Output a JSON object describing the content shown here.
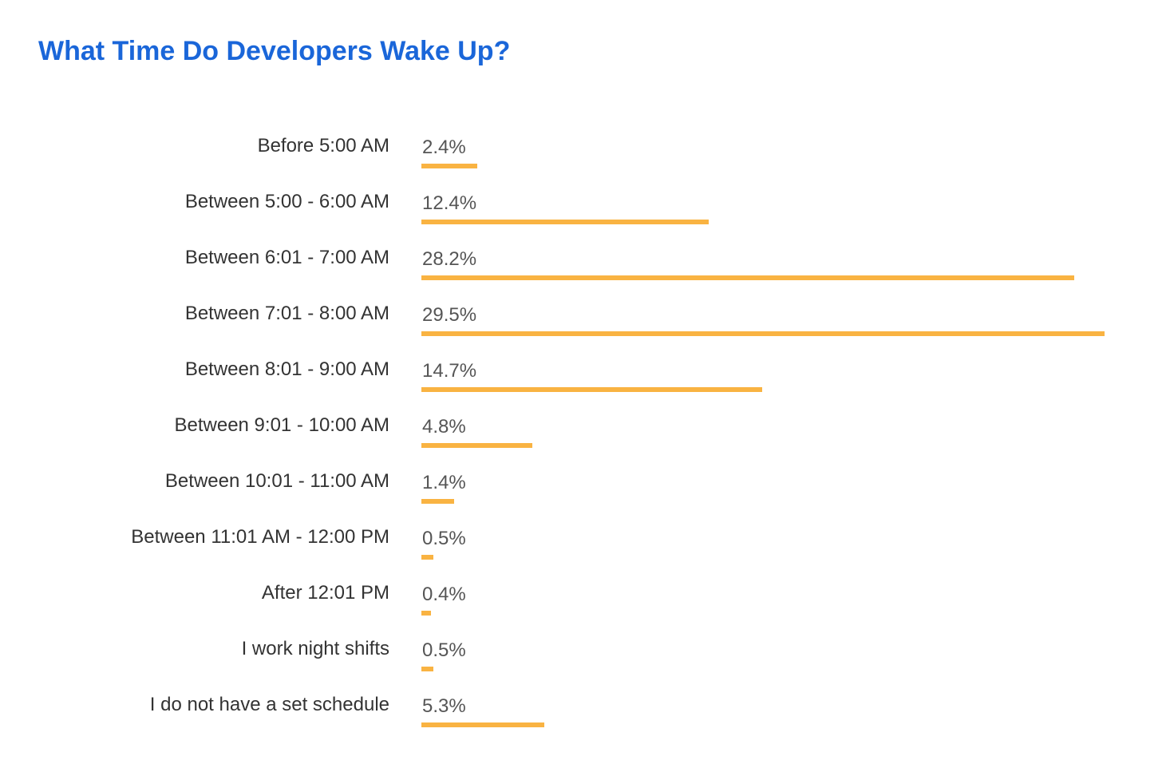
{
  "chart_data": {
    "type": "bar",
    "orientation": "horizontal",
    "title": "What Time Do Developers Wake Up?",
    "categories": [
      "Before 5:00 AM",
      "Between 5:00 - 6:00 AM",
      "Between 6:01 - 7:00 AM",
      "Between 7:01 - 8:00 AM",
      "Between 8:01 - 9:00 AM",
      "Between 9:01 - 10:00 AM",
      "Between 10:01 - 11:00 AM",
      "Between 11:01 AM - 12:00 PM",
      "After 12:01 PM",
      "I work night shifts",
      "I do not have a set schedule"
    ],
    "values": [
      2.4,
      12.4,
      28.2,
      29.5,
      14.7,
      4.8,
      1.4,
      0.5,
      0.4,
      0.5,
      5.3
    ],
    "value_labels": [
      "2.4%",
      "12.4%",
      "28.2%",
      "29.5%",
      "14.7%",
      "4.8%",
      "1.4%",
      "0.5%",
      "0.4%",
      "0.5%",
      "5.3%"
    ],
    "unit": "%",
    "grid": false,
    "legend": "none",
    "colors": {
      "title": "#1a66d9",
      "bar": "#f9b342"
    }
  }
}
